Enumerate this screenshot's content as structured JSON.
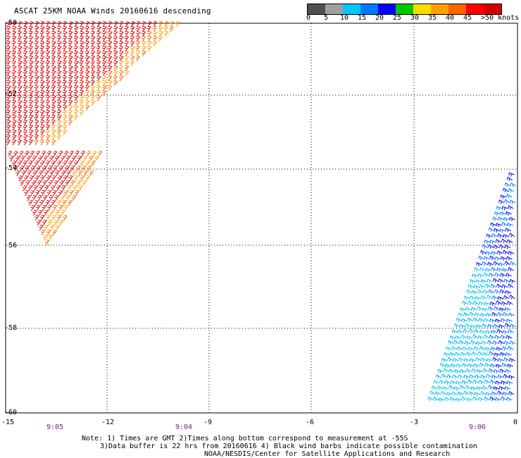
{
  "title": "ASCAT 25KM NOAA Winds 20160616 descending",
  "colorbar": {
    "colors": [
      "#505050",
      "#a0a0a0",
      "#00c8ff",
      "#0078ff",
      "#0000ff",
      "#00c800",
      "#ffdc00",
      "#ffa000",
      "#ff6400",
      "#ff0000",
      "#d20000",
      "#8b4513",
      "#ff00ff",
      "#a000ff",
      "#5a00a0"
    ],
    "labels": [
      "0",
      "5",
      "10",
      "15",
      "20",
      "25",
      "30",
      "35",
      "40",
      "45",
      ">50 knots"
    ]
  },
  "axes": {
    "x_ticks": [
      "-15",
      "-12",
      "-9",
      "-6",
      "-3",
      "0"
    ],
    "y_ticks": [
      "-50",
      "-52",
      "-54",
      "-56",
      "-58",
      "-60"
    ]
  },
  "times": [
    "9:05",
    "9:04",
    "9:06"
  ],
  "notes": [
    "Note: 1) Times are GMT 2)Times along bottom correspond to measurement at -55S",
    "3)Data buffer is 22 hrs from 20160616 4) Black wind barbs indicate possible contamination",
    "NOAA/NESDIS/Center for Satellite Applications and Research"
  ]
}
